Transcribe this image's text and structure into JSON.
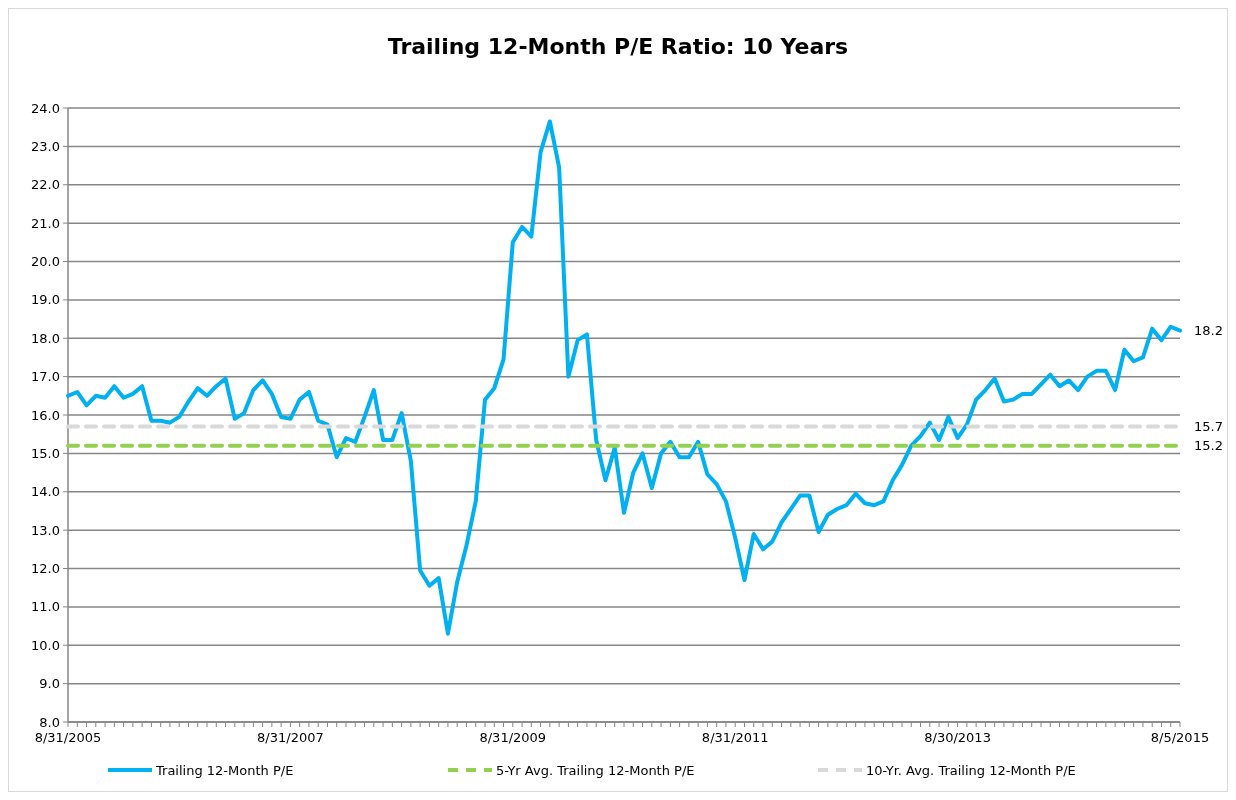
{
  "chart_data": {
    "type": "line",
    "title": "Trailing 12-Month P/E Ratio: 10 Years",
    "categories": [
      "8/31/2005",
      null,
      null,
      null,
      null,
      null,
      null,
      null,
      null,
      null,
      null,
      null,
      null,
      null,
      null,
      null,
      null,
      null,
      null,
      null,
      null,
      null,
      null,
      null,
      "8/31/2007",
      null,
      null,
      null,
      null,
      null,
      null,
      null,
      null,
      null,
      null,
      null,
      null,
      null,
      null,
      null,
      null,
      null,
      null,
      null,
      null,
      null,
      null,
      null,
      "8/31/2009",
      null,
      null,
      null,
      null,
      null,
      null,
      null,
      null,
      null,
      null,
      null,
      null,
      null,
      null,
      null,
      null,
      null,
      null,
      null,
      null,
      null,
      null,
      null,
      "8/31/2011",
      null,
      null,
      null,
      null,
      null,
      null,
      null,
      null,
      null,
      null,
      null,
      null,
      null,
      null,
      null,
      null,
      null,
      null,
      null,
      null,
      null,
      null,
      null,
      "8/30/2013",
      null,
      null,
      null,
      null,
      null,
      null,
      null,
      null,
      null,
      null,
      null,
      null,
      null,
      null,
      null,
      null,
      null,
      null,
      null,
      null,
      null,
      null,
      null,
      "8/5/2015"
    ],
    "series": [
      {
        "name": "Trailing 12-Month P/E",
        "color": "#00b0f0",
        "line_style": "solid",
        "values": [
          16.5,
          16.6,
          16.25,
          16.5,
          16.45,
          16.75,
          16.45,
          16.55,
          16.75,
          15.85,
          15.85,
          15.8,
          15.95,
          16.35,
          16.7,
          16.5,
          16.75,
          16.95,
          15.9,
          16.05,
          16.65,
          16.9,
          16.55,
          15.95,
          15.9,
          16.4,
          16.6,
          15.85,
          15.75,
          14.9,
          15.4,
          15.3,
          15.95,
          16.65,
          15.35,
          15.35,
          16.05,
          14.8,
          11.95,
          11.55,
          11.75,
          10.3,
          11.65,
          12.6,
          13.75,
          16.4,
          16.7,
          17.45,
          20.5,
          20.9,
          20.65,
          22.85,
          23.65,
          22.45,
          17.0,
          17.95,
          18.1,
          15.35,
          14.3,
          15.15,
          13.45,
          14.5,
          15.0,
          14.1,
          15.0,
          15.3,
          14.9,
          14.9,
          15.3,
          14.45,
          14.2,
          13.75,
          12.8,
          11.7,
          12.9,
          12.5,
          12.7,
          13.2,
          13.55,
          13.9,
          13.9,
          12.95,
          13.4,
          13.55,
          13.65,
          13.95,
          13.7,
          13.65,
          13.75,
          14.3,
          14.7,
          15.2,
          15.45,
          15.8,
          15.35,
          15.95,
          15.4,
          15.75,
          16.4,
          16.65,
          16.95,
          16.35,
          16.4,
          16.55,
          16.55,
          16.8,
          17.05,
          16.75,
          16.9,
          16.65,
          17.0,
          17.15,
          17.15,
          16.65,
          17.7,
          17.4,
          17.5,
          18.25,
          17.95,
          18.3,
          18.2
        ]
      },
      {
        "name": "5-Yr Avg. Trailing 12-Month P/E",
        "color": "#92d050",
        "line_style": "dashed",
        "values": [
          15.2,
          15.2,
          15.2,
          15.2,
          15.2,
          15.2,
          15.2,
          15.2,
          15.2,
          15.2,
          15.2,
          15.2,
          15.2,
          15.2,
          15.2,
          15.2,
          15.2,
          15.2,
          15.2,
          15.2,
          15.2,
          15.2,
          15.2,
          15.2,
          15.2,
          15.2,
          15.2,
          15.2,
          15.2,
          15.2,
          15.2,
          15.2,
          15.2,
          15.2,
          15.2,
          15.2,
          15.2,
          15.2,
          15.2,
          15.2,
          15.2,
          15.2,
          15.2,
          15.2,
          15.2,
          15.2,
          15.2,
          15.2,
          15.2,
          15.2,
          15.2,
          15.2,
          15.2,
          15.2,
          15.2,
          15.2,
          15.2,
          15.2,
          15.2,
          15.2,
          15.2,
          15.2,
          15.2,
          15.2,
          15.2,
          15.2,
          15.2,
          15.2,
          15.2,
          15.2,
          15.2,
          15.2,
          15.2,
          15.2,
          15.2,
          15.2,
          15.2,
          15.2,
          15.2,
          15.2,
          15.2,
          15.2,
          15.2,
          15.2,
          15.2,
          15.2,
          15.2,
          15.2,
          15.2,
          15.2,
          15.2,
          15.2,
          15.2,
          15.2,
          15.2,
          15.2,
          15.2,
          15.2,
          15.2,
          15.2,
          15.2,
          15.2,
          15.2,
          15.2,
          15.2,
          15.2,
          15.2,
          15.2,
          15.2,
          15.2,
          15.2,
          15.2,
          15.2,
          15.2,
          15.2,
          15.2,
          15.2,
          15.2,
          15.2,
          15.2,
          15.2
        ]
      },
      {
        "name": "10-Yr. Avg. Trailing 12-Month P/E",
        "color": "#d9d9d9",
        "line_style": "dashed",
        "values": [
          15.7,
          15.7,
          15.7,
          15.7,
          15.7,
          15.7,
          15.7,
          15.7,
          15.7,
          15.7,
          15.7,
          15.7,
          15.7,
          15.7,
          15.7,
          15.7,
          15.7,
          15.7,
          15.7,
          15.7,
          15.7,
          15.7,
          15.7,
          15.7,
          15.7,
          15.7,
          15.7,
          15.7,
          15.7,
          15.7,
          15.7,
          15.7,
          15.7,
          15.7,
          15.7,
          15.7,
          15.7,
          15.7,
          15.7,
          15.7,
          15.7,
          15.7,
          15.7,
          15.7,
          15.7,
          15.7,
          15.7,
          15.7,
          15.7,
          15.7,
          15.7,
          15.7,
          15.7,
          15.7,
          15.7,
          15.7,
          15.7,
          15.7,
          15.7,
          15.7,
          15.7,
          15.7,
          15.7,
          15.7,
          15.7,
          15.7,
          15.7,
          15.7,
          15.7,
          15.7,
          15.7,
          15.7,
          15.7,
          15.7,
          15.7,
          15.7,
          15.7,
          15.7,
          15.7,
          15.7,
          15.7,
          15.7,
          15.7,
          15.7,
          15.7,
          15.7,
          15.7,
          15.7,
          15.7,
          15.7,
          15.7,
          15.7,
          15.7,
          15.7,
          15.7,
          15.7,
          15.7,
          15.7,
          15.7,
          15.7,
          15.7,
          15.7,
          15.7,
          15.7,
          15.7,
          15.7,
          15.7,
          15.7,
          15.7,
          15.7,
          15.7,
          15.7,
          15.7,
          15.7,
          15.7,
          15.7,
          15.7,
          15.7,
          15.7,
          15.7,
          15.7
        ]
      }
    ],
    "annotations": [
      {
        "text": "18.2",
        "x": "8/5/2015",
        "y": 18.2
      },
      {
        "text": "15.7",
        "x": "8/5/2015",
        "y": 15.7
      },
      {
        "text": "15.2",
        "x": "8/5/2015",
        "y": 15.2
      }
    ],
    "ylim": [
      8,
      24
    ],
    "yticks": [
      {
        "value": 8,
        "label": "8.0"
      },
      {
        "value": 9,
        "label": "9.0"
      },
      {
        "value": 10,
        "label": "10.0"
      },
      {
        "value": 11,
        "label": "11.0"
      },
      {
        "value": 12,
        "label": "12.0"
      },
      {
        "value": 13,
        "label": "13.0"
      },
      {
        "value": 14,
        "label": "14.0"
      },
      {
        "value": 15,
        "label": "15.0"
      },
      {
        "value": 16,
        "label": "16.0"
      },
      {
        "value": 17,
        "label": "17.0"
      },
      {
        "value": 18,
        "label": "18.0"
      },
      {
        "value": 19,
        "label": "19.0"
      },
      {
        "value": 20,
        "label": "20.0"
      },
      {
        "value": 21,
        "label": "21.0"
      },
      {
        "value": 22,
        "label": "22.0"
      },
      {
        "value": 23,
        "label": "23.0"
      },
      {
        "value": 24,
        "label": "24.0"
      }
    ],
    "grid": "y",
    "legend": "bottom",
    "marker": "none"
  }
}
